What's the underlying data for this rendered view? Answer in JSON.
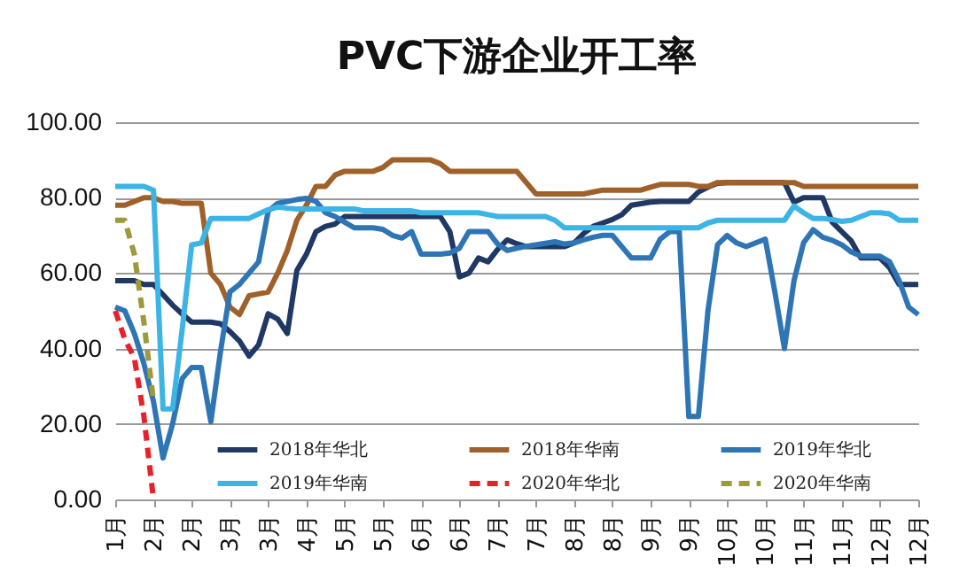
{
  "chart_data": {
    "type": "line",
    "title": "PVC下游企业开工率",
    "categories": [
      "1月",
      null,
      null,
      null,
      "2月",
      null,
      null,
      null,
      "2月",
      null,
      null,
      null,
      "3月",
      null,
      null,
      null,
      "3月",
      null,
      null,
      null,
      "4月",
      null,
      null,
      null,
      "5月",
      null,
      null,
      null,
      "5月",
      null,
      null,
      null,
      "6月",
      null,
      null,
      null,
      "6月",
      null,
      null,
      null,
      "7月",
      null,
      null,
      null,
      "7月",
      null,
      null,
      null,
      "8月",
      null,
      null,
      null,
      "8月",
      null,
      null,
      null,
      "9月",
      null,
      null,
      null,
      "9月",
      null,
      null,
      null,
      "10月",
      null,
      null,
      null,
      "10月",
      null,
      null,
      null,
      "11月",
      null,
      null,
      null,
      "11月",
      null,
      null,
      null,
      "12月",
      null,
      null,
      null,
      "12月"
    ],
    "ylim": [
      0,
      100
    ],
    "yticks": [
      {
        "value": 0,
        "label": "0.00"
      },
      {
        "value": 20,
        "label": "20.00"
      },
      {
        "value": 40,
        "label": "40.00"
      },
      {
        "value": 60,
        "label": "60.00"
      },
      {
        "value": 80,
        "label": "80.00"
      },
      {
        "value": 100,
        "label": "100.00"
      }
    ],
    "grid": "y",
    "legend": "bottom",
    "series": [
      {
        "name": "2018年华北",
        "color": "#1f3864",
        "line_style": "solid",
        "values": [
          58,
          58,
          58,
          57,
          57,
          54.3,
          51.5,
          49.2,
          47,
          47,
          47,
          46.6,
          44.5,
          42,
          38,
          41,
          49.2,
          47.8,
          44,
          60.7,
          65,
          71,
          72.4,
          73,
          75,
          75,
          75,
          75,
          75,
          75,
          75,
          75,
          75,
          75,
          75,
          71,
          59,
          60,
          64,
          63,
          66.3,
          68.8,
          67.8,
          67,
          67,
          67,
          67,
          67,
          68,
          70.5,
          72.4,
          73.3,
          74.2,
          75.5,
          78,
          78.4,
          78.8,
          79,
          79,
          79,
          79,
          81.5,
          82.8,
          83.8,
          84,
          84,
          84,
          84,
          84,
          84,
          84,
          78.8,
          80,
          80,
          80,
          73.5,
          71,
          68.5,
          64,
          64,
          64,
          61.4,
          57,
          57,
          57
        ]
      },
      {
        "name": "2018年华南",
        "color": "#a0602a",
        "line_style": "solid",
        "values": [
          78,
          78,
          79,
          80,
          80,
          79,
          79,
          78.5,
          78.5,
          78.5,
          60,
          57,
          51,
          49,
          54,
          54.5,
          55,
          60,
          66,
          74,
          78,
          83,
          83,
          86,
          87,
          87,
          87,
          87,
          88,
          90,
          90,
          90,
          90,
          90,
          89,
          87,
          87,
          87,
          87,
          87,
          87,
          87,
          87,
          84,
          81,
          81,
          81,
          81,
          81,
          81,
          81.5,
          82,
          82,
          82,
          82,
          82,
          82.8,
          83.5,
          83.5,
          83.5,
          83.5,
          83,
          83,
          84,
          84,
          84,
          84,
          84,
          84,
          84,
          84,
          84,
          83,
          83,
          83,
          83,
          83,
          83,
          83,
          83,
          83,
          83,
          83,
          83,
          83
        ]
      },
      {
        "name": "2019年华北",
        "color": "#2e75b6",
        "line_style": "solid",
        "values": [
          51,
          50,
          44,
          36,
          26,
          11,
          20,
          32,
          35,
          35,
          20.6,
          39,
          55,
          57,
          60,
          63,
          76.4,
          78.5,
          79,
          79.5,
          79.8,
          79,
          76,
          75,
          73.5,
          72,
          72,
          72,
          71.6,
          70,
          69.3,
          71,
          65,
          65,
          65,
          65.3,
          66.6,
          71,
          71,
          71,
          67.7,
          66,
          66.6,
          67.1,
          67.5,
          67.9,
          68.3,
          67.7,
          68,
          68.8,
          69.5,
          70,
          70,
          67,
          64,
          64,
          64,
          69,
          71,
          71,
          22,
          22,
          50,
          67.5,
          70,
          68,
          67,
          68,
          69,
          55,
          40,
          58,
          68,
          71.5,
          69.5,
          68.7,
          67.5,
          65.6,
          64.5,
          64.5,
          64.5,
          63,
          58,
          51,
          49
        ]
      },
      {
        "name": "2019年华南",
        "color": "#3cb4e6",
        "line_style": "solid",
        "values": [
          83,
          83,
          83,
          83,
          82,
          24,
          24,
          45,
          67.5,
          68,
          74.5,
          74.5,
          74.5,
          74.5,
          74.5,
          75.7,
          76.8,
          77.5,
          77.2,
          77,
          77,
          77,
          77,
          77,
          77,
          77,
          76.5,
          76.5,
          76.5,
          76.5,
          76.5,
          76.5,
          76,
          76,
          76,
          76,
          76,
          76,
          76,
          75.5,
          75,
          75,
          75,
          75,
          75,
          75,
          74,
          72,
          72,
          72,
          72,
          72,
          72,
          72,
          72,
          72,
          72,
          72,
          72,
          72,
          72,
          72,
          73.3,
          74,
          74,
          74,
          74,
          74,
          74,
          74,
          74,
          77.8,
          76,
          74.5,
          74.5,
          74.2,
          73.7,
          74,
          75,
          76,
          76,
          75.7,
          74,
          74,
          74
        ]
      },
      {
        "name": "2020年华北",
        "color": "#e8202a",
        "line_style": "dashed",
        "values": [
          50,
          42.5,
          37.5,
          22,
          0,
          null,
          null,
          null,
          null,
          null,
          null,
          null,
          null,
          null,
          null,
          null,
          null,
          null,
          null,
          null,
          null,
          null,
          null,
          null,
          null,
          null,
          null,
          null,
          null,
          null,
          null,
          null,
          null,
          null,
          null,
          null,
          null,
          null,
          null,
          null,
          null,
          null,
          null,
          null,
          null,
          null,
          null,
          null,
          null,
          null,
          null,
          null,
          null,
          null,
          null,
          null,
          null,
          null,
          null,
          null,
          null,
          null,
          null,
          null,
          null,
          null,
          null,
          null,
          null,
          null,
          null,
          null,
          null,
          null,
          null,
          null,
          null,
          null,
          null,
          null,
          null,
          null,
          null,
          null,
          null
        ]
      },
      {
        "name": "2020年华南",
        "color": "#9c9a3a",
        "line_style": "dashed",
        "values": [
          74,
          74,
          65,
          47,
          26,
          null,
          null,
          null,
          null,
          null,
          null,
          null,
          null,
          null,
          null,
          null,
          null,
          null,
          null,
          null,
          null,
          null,
          null,
          null,
          null,
          null,
          null,
          null,
          null,
          null,
          null,
          null,
          null,
          null,
          null,
          null,
          null,
          null,
          null,
          null,
          null,
          null,
          null,
          null,
          null,
          null,
          null,
          null,
          null,
          null,
          null,
          null,
          null,
          null,
          null,
          null,
          null,
          null,
          null,
          null,
          null,
          null,
          null,
          null,
          null,
          null,
          null,
          null,
          null,
          null,
          null,
          null,
          null,
          null,
          null,
          null,
          null,
          null,
          null,
          null,
          null,
          null,
          null,
          null,
          null
        ]
      }
    ]
  }
}
